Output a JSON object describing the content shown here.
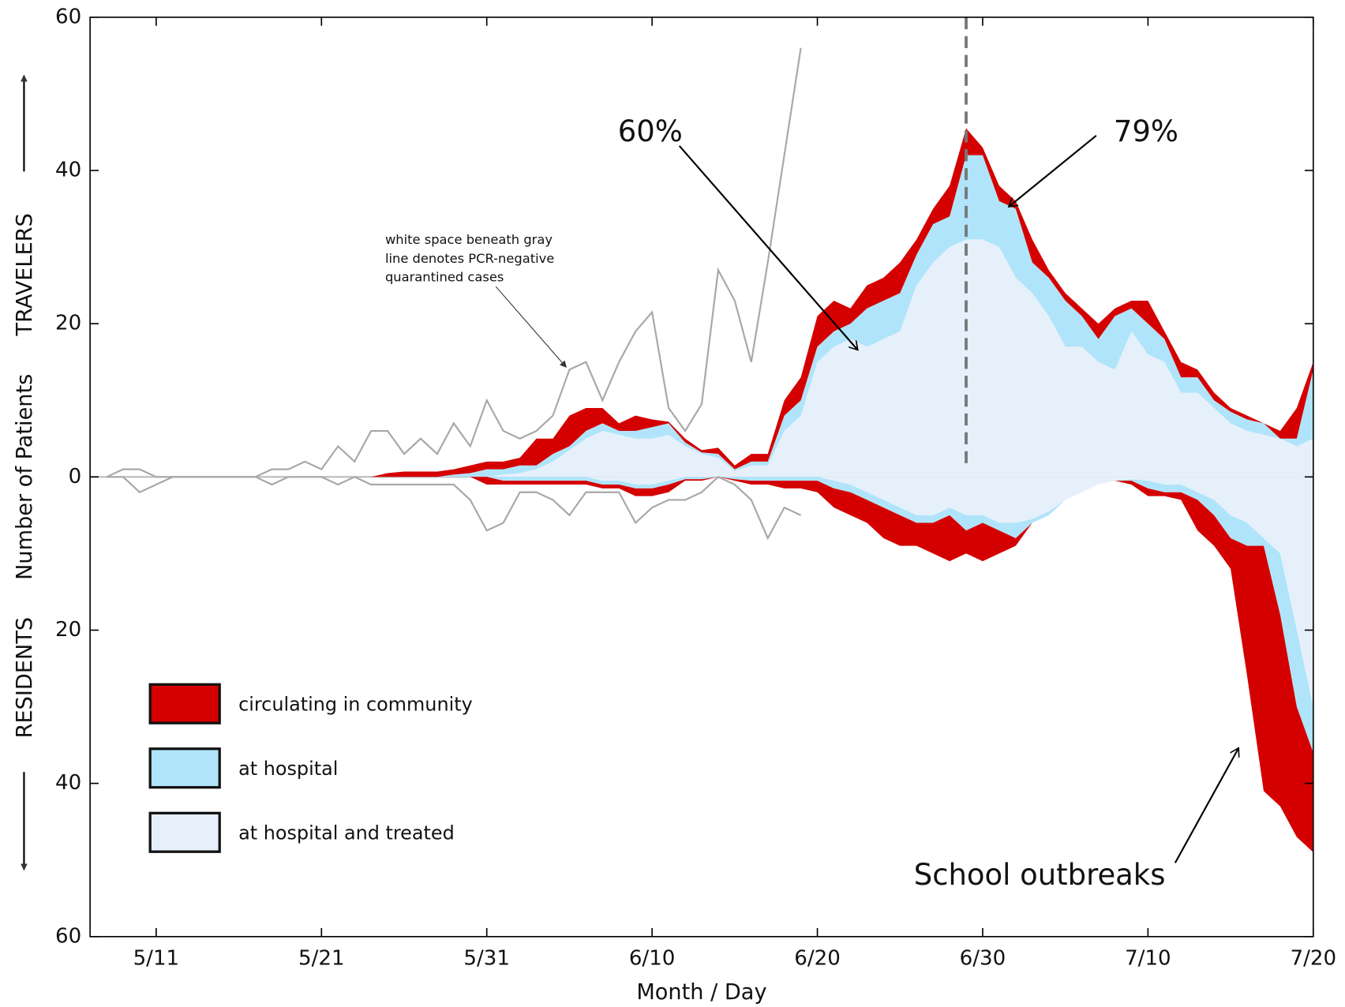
{
  "chart_data": {
    "type": "stacked-area",
    "y_label_top": "TRAVELERS",
    "y_label_mid": "Number of Patients",
    "y_label_bottom": "RESIDENTS",
    "x_label": "Month / Day",
    "xlim": [
      "5/7",
      "7/20"
    ],
    "xticks": [
      "5/11",
      "5/21",
      "5/31",
      "6/10",
      "6/20",
      "6/30",
      "7/10",
      "7/20"
    ],
    "ylim": [
      -60,
      60
    ],
    "yticks": [
      {
        "value": -60,
        "label": "60"
      },
      {
        "value": -40,
        "label": "40"
      },
      {
        "value": -20,
        "label": "20"
      },
      0,
      20,
      40,
      60
    ],
    "vline": "6/29",
    "x": [
      "5/24",
      "5/25",
      "5/26",
      "5/27",
      "5/28",
      "5/29",
      "5/30",
      "5/31",
      "6/1",
      "6/2",
      "6/3",
      "6/4",
      "6/5",
      "6/6",
      "6/7",
      "6/8",
      "6/9",
      "6/10",
      "6/11",
      "6/12",
      "6/13",
      "6/14",
      "6/15",
      "6/16",
      "6/17",
      "6/18",
      "6/19",
      "6/20",
      "6/21",
      "6/22",
      "6/23",
      "6/24",
      "6/25",
      "6/26",
      "6/27",
      "6/28",
      "6/29",
      "6/30",
      "7/1",
      "7/2",
      "7/3",
      "7/4",
      "7/5",
      "7/6",
      "7/7",
      "7/8",
      "7/9",
      "7/10",
      "7/11",
      "7/12",
      "7/13",
      "7/14",
      "7/15",
      "7/16",
      "7/17",
      "7/18",
      "7/19",
      "7/20"
    ],
    "series": [
      {
        "name": "circulating in community",
        "color": "#d40000",
        "travelers": [
          0,
          0.5,
          0.7,
          0.7,
          0.7,
          0.7,
          1,
          1,
          1,
          1,
          3.5,
          2,
          4,
          3,
          2,
          1,
          2,
          1,
          0.2,
          0.5,
          0.3,
          0.8,
          0.5,
          1,
          1,
          2,
          3,
          4,
          4,
          2,
          3,
          3,
          4,
          2,
          2,
          4,
          3.5,
          1,
          2,
          1,
          3,
          1,
          1,
          1,
          2,
          1,
          1,
          3,
          1,
          2,
          1,
          1,
          0.5,
          0.5,
          0,
          1,
          4,
          1
        ],
        "residents": [
          0,
          0,
          0,
          0,
          0,
          0,
          0,
          -1,
          -0.5,
          -0.5,
          -0.5,
          -0.5,
          -0.5,
          -0.5,
          -0.5,
          -0.5,
          -1,
          -1,
          -1,
          -0.2,
          -0.2,
          0,
          -0.2,
          -0.5,
          -0.5,
          -1,
          -1,
          -1.5,
          -2.5,
          -3,
          -3,
          -4,
          -4,
          -3,
          -4,
          -6,
          -3,
          -5,
          -3,
          -1,
          0,
          0,
          0,
          0,
          0,
          0,
          -0.5,
          -1,
          -0.5,
          -1,
          -4,
          -4,
          -4,
          -17,
          -32,
          -25,
          -17,
          -13
        ]
      },
      {
        "name": "at hospital",
        "color": "#b0e4fa",
        "travelers": [
          0,
          0,
          0,
          0,
          0,
          0.3,
          0.5,
          1,
          0.7,
          1,
          0.5,
          1,
          0.5,
          1,
          1,
          0.5,
          1,
          1.5,
          1.5,
          0.5,
          0.2,
          0.5,
          0.2,
          0.5,
          0.5,
          2,
          2,
          2,
          2,
          2,
          5,
          5,
          5,
          4,
          5,
          4,
          11,
          11,
          6,
          9,
          4,
          5,
          6,
          4,
          3,
          7,
          3,
          4,
          3,
          2,
          2,
          1,
          1.5,
          1.5,
          1.5,
          0,
          1,
          9
        ],
        "residents": [
          0,
          0,
          0,
          0,
          0,
          0,
          0,
          0,
          -0.5,
          -0.5,
          -0.5,
          -0.5,
          -0.5,
          -0.5,
          -0.5,
          -0.5,
          -0.5,
          -0.5,
          -0.5,
          -0.3,
          -0.3,
          0,
          -0.3,
          -0.5,
          -0.5,
          -0.5,
          -0.5,
          -0.5,
          -1,
          -1,
          -1,
          -1,
          -1,
          -1,
          -1,
          -1,
          -2,
          -1,
          -1,
          -2,
          -0.5,
          -0.5,
          0,
          0,
          0,
          0,
          -0.2,
          -1,
          -1,
          -1,
          -1,
          -2,
          -3,
          -3,
          -1,
          -8,
          -10,
          -6
        ]
      },
      {
        "name": "at hospital and treated",
        "color": "#e6f0fb",
        "travelers": [
          0,
          0,
          0,
          0,
          0,
          0,
          0,
          0,
          0.3,
          0.5,
          1,
          2,
          3.5,
          5,
          6,
          5.5,
          5,
          5,
          5.5,
          4,
          3,
          2.5,
          0.8,
          1.5,
          1.5,
          6,
          8,
          15,
          17,
          18,
          17,
          18,
          19,
          25,
          28,
          30,
          31,
          31,
          30,
          26,
          24,
          21,
          17,
          17,
          15,
          14,
          19,
          16,
          15,
          11,
          11,
          9,
          7,
          6,
          5.5,
          5,
          4,
          5
        ],
        "residents": [
          0,
          0,
          0,
          0,
          0,
          0,
          0,
          0,
          0,
          0,
          0,
          0,
          0,
          0,
          -0.5,
          -0.5,
          -1,
          -1,
          -0.5,
          0,
          0,
          0,
          0,
          0,
          0,
          0,
          0,
          0,
          -0.5,
          -1,
          -2,
          -3,
          -4,
          -5,
          -5,
          -4,
          -5,
          -5,
          -6,
          -6,
          -5.5,
          -4.5,
          -3,
          -2,
          -1,
          -0.5,
          -0.3,
          -0.5,
          -1,
          -1,
          -2,
          -3,
          -5,
          -6,
          -8,
          -10,
          -20,
          -30
        ]
      }
    ],
    "quarantined": {
      "color": "#a8a8a8",
      "x": [
        "5/8",
        "5/9",
        "5/10",
        "5/11",
        "5/12",
        "5/13",
        "5/14",
        "5/15",
        "5/16",
        "5/17",
        "5/18",
        "5/19",
        "5/20",
        "5/21",
        "5/22",
        "5/23",
        "5/24",
        "5/25",
        "5/26",
        "5/27",
        "5/28",
        "5/29",
        "5/30",
        "5/31",
        "6/1",
        "6/2",
        "6/3",
        "6/4",
        "6/5",
        "6/6",
        "6/7",
        "6/8",
        "6/9",
        "6/10",
        "6/11",
        "6/12",
        "6/13",
        "6/14",
        "6/15",
        "6/16",
        "6/17",
        "6/18",
        "6/19"
      ],
      "travelers": [
        0,
        1,
        1,
        0,
        0,
        0,
        0,
        0,
        0,
        0,
        1,
        1,
        2,
        1,
        4,
        2,
        6,
        6,
        3,
        5,
        3,
        7,
        4,
        10,
        6,
        5,
        6,
        8,
        14,
        15,
        10,
        15,
        19,
        21.5,
        9,
        6,
        9.5,
        27,
        23,
        15,
        28,
        42,
        56
      ],
      "residents": [
        0,
        0,
        -2,
        -1,
        0,
        0,
        0,
        0,
        0,
        0,
        -1,
        0,
        0,
        0,
        -1,
        0,
        -1,
        -1,
        -1,
        -1,
        -1,
        -1,
        -3,
        -7,
        -6,
        -2,
        -2,
        -3,
        -5,
        -2,
        -2,
        -2,
        -6,
        -4,
        -3,
        -3,
        -2,
        0,
        -1,
        -3,
        -8,
        -4,
        -5
      ]
    },
    "annotations": {
      "a60": "60%",
      "a79": "79%",
      "school": "School outbreaks",
      "note": [
        "white space beneath gray",
        "line denotes PCR-negative",
        "quarantined cases"
      ]
    }
  }
}
